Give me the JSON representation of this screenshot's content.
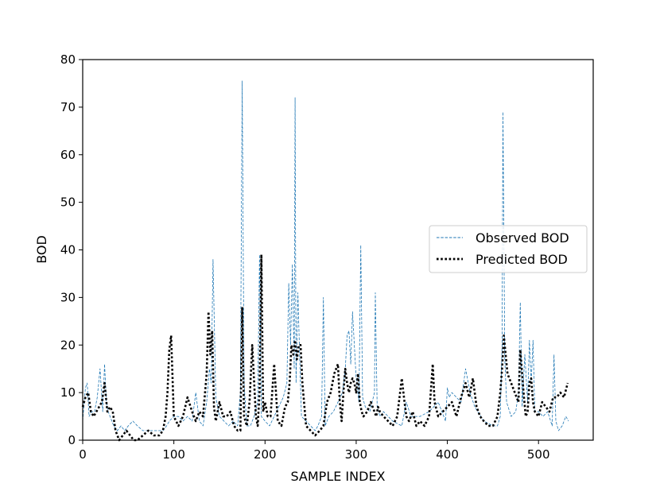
{
  "chart_data": {
    "type": "line",
    "title": "",
    "xlabel": "SAMPLE INDEX",
    "ylabel": "BOD",
    "xlim": [
      0,
      560
    ],
    "ylim": [
      0,
      80
    ],
    "xticks": [
      0,
      100,
      200,
      300,
      400,
      500
    ],
    "yticks": [
      0,
      10,
      20,
      30,
      40,
      50,
      60,
      70,
      80
    ],
    "grid": false,
    "legend_position": "center-right",
    "series": [
      {
        "name": "Observed BOD",
        "color": "#1f77b4",
        "style": "dashed",
        "x": [
          0,
          3,
          5,
          7,
          10,
          13,
          16,
          19,
          22,
          24,
          26,
          28,
          30,
          34,
          38,
          42,
          46,
          50,
          55,
          60,
          66,
          72,
          80,
          88,
          92,
          95,
          100,
          105,
          110,
          115,
          120,
          124,
          128,
          132,
          136,
          139,
          141,
          143,
          146,
          150,
          155,
          160,
          165,
          170,
          173,
          175,
          177,
          180,
          184,
          188,
          192,
          194,
          196,
          200,
          205,
          210,
          215,
          220,
          224,
          226,
          228,
          230,
          232,
          233,
          234,
          236,
          238,
          240,
          245,
          250,
          255,
          258,
          262,
          264,
          266,
          270,
          275,
          280,
          285,
          288,
          290,
          292,
          294,
          296,
          298,
          300,
          303,
          305,
          307,
          310,
          315,
          320,
          321,
          323,
          326,
          330,
          340,
          350,
          355,
          360,
          370,
          380,
          390,
          398,
          400,
          402,
          405,
          410,
          415,
          420,
          425,
          430,
          440,
          450,
          455,
          458,
          460,
          461,
          463,
          465,
          470,
          475,
          478,
          480,
          482,
          485,
          488,
          490,
          492,
          494,
          496,
          500,
          505,
          510,
          515,
          517,
          519,
          522,
          526,
          530,
          533
        ],
        "y": [
          4,
          11,
          12,
          5,
          6,
          6,
          9,
          15,
          6,
          16,
          8,
          6,
          5,
          3,
          2,
          3,
          2,
          3,
          4,
          3,
          2,
          2,
          2,
          2,
          3,
          4,
          5,
          5,
          4,
          5,
          4,
          10,
          4,
          3,
          8,
          15,
          12,
          38,
          9,
          5,
          4,
          3,
          4,
          3,
          10,
          75.5,
          12,
          3,
          3,
          5,
          8,
          39,
          5,
          4,
          3,
          5,
          7,
          9,
          12,
          33,
          20,
          37,
          15,
          72,
          12,
          31,
          18,
          5,
          4,
          3,
          2,
          3,
          5,
          30,
          3,
          5,
          6,
          8,
          10,
          15,
          22,
          23,
          16,
          27,
          20,
          13,
          8,
          41,
          9,
          7,
          6,
          10,
          31,
          7,
          5,
          6,
          4,
          3,
          8,
          5,
          5,
          6,
          8,
          4,
          11,
          9,
          10,
          9,
          8,
          15,
          10,
          7,
          4,
          3,
          3,
          5,
          20,
          69,
          17,
          8,
          5,
          6,
          10,
          29,
          7,
          18,
          8,
          21,
          12,
          21,
          6,
          6,
          5,
          6,
          3,
          18,
          4,
          2,
          3,
          5,
          4
        ]
      },
      {
        "name": "Predicted BOD",
        "color": "#000000",
        "style": "dotted",
        "x": [
          0,
          3,
          6,
          9,
          12,
          15,
          18,
          21,
          24,
          27,
          30,
          33,
          36,
          40,
          44,
          48,
          52,
          56,
          60,
          66,
          72,
          78,
          84,
          88,
          91,
          93,
          95,
          97,
          100,
          105,
          110,
          115,
          120,
          124,
          128,
          132,
          136,
          138,
          140,
          142,
          144,
          146,
          150,
          154,
          158,
          162,
          166,
          170,
          173,
          175,
          177,
          180,
          183,
          186,
          190,
          192,
          194,
          196,
          198,
          200,
          203,
          206,
          210,
          214,
          218,
          222,
          225,
          227,
          229,
          231,
          233,
          235,
          237,
          239,
          241,
          245,
          250,
          255,
          260,
          264,
          268,
          272,
          276,
          280,
          282,
          284,
          286,
          288,
          290,
          292,
          294,
          296,
          298,
          300,
          302,
          304,
          306,
          308,
          312,
          316,
          320,
          322,
          324,
          326,
          330,
          335,
          340,
          345,
          350,
          353,
          355,
          358,
          362,
          366,
          370,
          375,
          380,
          384,
          386,
          390,
          395,
          400,
          405,
          410,
          415,
          420,
          424,
          428,
          432,
          436,
          440,
          445,
          450,
          455,
          458,
          460,
          462,
          464,
          466,
          470,
          474,
          478,
          480,
          482,
          484,
          486,
          488,
          490,
          492,
          494,
          496,
          500,
          504,
          508,
          512,
          516,
          520,
          524,
          528,
          532
        ],
        "y": [
          7,
          9,
          10,
          6,
          5,
          6,
          7,
          8,
          12,
          6,
          7,
          6,
          2,
          0,
          1,
          2,
          1,
          0,
          0,
          1,
          2,
          1,
          1,
          2,
          5,
          10,
          19,
          22,
          5,
          3,
          5,
          9,
          6,
          4,
          6,
          5,
          14,
          27,
          18,
          23,
          7,
          4,
          8,
          5,
          5,
          6,
          3,
          2,
          2,
          28,
          5,
          3,
          8,
          20,
          5,
          3,
          10,
          39,
          6,
          8,
          5,
          5,
          16,
          4,
          3,
          7,
          8,
          12,
          20,
          18,
          21,
          17,
          20,
          20,
          12,
          3,
          2,
          1,
          2,
          3,
          8,
          10,
          14,
          16,
          8,
          4,
          10,
          15,
          12,
          10,
          12,
          13,
          12,
          10,
          14,
          8,
          6,
          5,
          6,
          8,
          6,
          5,
          7,
          6,
          5,
          4,
          3,
          5,
          13,
          8,
          5,
          4,
          6,
          3,
          4,
          3,
          5,
          16,
          8,
          5,
          6,
          7,
          8,
          5,
          9,
          12,
          9,
          13,
          7,
          5,
          4,
          3,
          3,
          5,
          10,
          15,
          22,
          18,
          14,
          12,
          10,
          8,
          19,
          14,
          9,
          5,
          6,
          12,
          13,
          8,
          6,
          5,
          8,
          7,
          6,
          9,
          9,
          10,
          9,
          12
        ]
      }
    ]
  }
}
